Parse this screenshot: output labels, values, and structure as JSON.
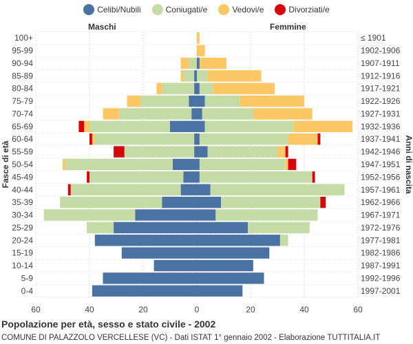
{
  "chart_data": {
    "type": "bar",
    "title": "Popolazione per età, sesso e stato civile - 2002",
    "subtitle": "COMUNE DI PALAZZOLO VERCELLESE (VC) - Dati ISTAT 1° gennaio 2002 - Elaborazione TUTTITALIA.IT",
    "left_header": "Maschi",
    "right_header": "Femmine",
    "ylabel_left": "Fasce di età",
    "ylabel_right": "Anni di nascita",
    "xlim": [
      -60,
      60
    ],
    "xticks": [
      -60,
      -40,
      -20,
      0,
      20,
      40,
      60
    ],
    "xtick_labels": [
      "60",
      "40",
      "20",
      "0",
      "20",
      "40",
      "60"
    ],
    "series": [
      {
        "name": "Celibi/Nubili",
        "color": "#4a72a2"
      },
      {
        "name": "Coniugati/e",
        "color": "#c5dba6"
      },
      {
        "name": "Vedovi/e",
        "color": "#fcc865"
      },
      {
        "name": "Divorziati/e",
        "color": "#d7060b"
      }
    ],
    "categories": [
      "100+",
      "95-99",
      "90-94",
      "85-89",
      "80-84",
      "75-79",
      "70-74",
      "65-69",
      "60-64",
      "55-59",
      "50-54",
      "45-49",
      "40-44",
      "35-39",
      "30-34",
      "25-29",
      "20-24",
      "15-19",
      "10-14",
      "5-9",
      "0-4"
    ],
    "birth_years": [
      "≤ 1901",
      "1902-1906",
      "1907-1911",
      "1912-1916",
      "1917-1921",
      "1922-1926",
      "1927-1931",
      "1932-1936",
      "1937-1941",
      "1942-1946",
      "1947-1951",
      "1952-1956",
      "1957-1961",
      "1962-1966",
      "1967-1971",
      "1972-1976",
      "1977-1981",
      "1982-1986",
      "1987-1991",
      "1992-1996",
      "1997-2001"
    ],
    "males": {
      "Celibi/Nubili": [
        0,
        0,
        0,
        1,
        1,
        3,
        2,
        10,
        1,
        1,
        9,
        5,
        6,
        13,
        23,
        31,
        38,
        28,
        16,
        35,
        39
      ],
      "Coniugati/e": [
        0,
        0,
        3,
        4,
        12,
        18,
        27,
        30,
        37,
        26,
        40,
        35,
        41,
        38,
        34,
        10,
        0,
        0,
        0,
        0,
        0
      ],
      "Vedovi/e": [
        0,
        0,
        3,
        1,
        2,
        5,
        6,
        2,
        1,
        0,
        1,
        0,
        0,
        0,
        0,
        0,
        0,
        0,
        0,
        0,
        0
      ],
      "Divorziati/e": [
        0,
        0,
        0,
        0,
        0,
        0,
        0,
        2,
        1,
        4,
        0,
        1,
        1,
        0,
        0,
        0,
        0,
        0,
        0,
        0,
        0
      ]
    },
    "females": {
      "Celibi/Nubili": [
        0,
        0,
        1,
        0,
        1,
        3,
        2,
        3,
        1,
        4,
        1,
        1,
        5,
        9,
        7,
        19,
        31,
        27,
        21,
        25,
        17
      ],
      "Coniugati/e": [
        0,
        0,
        0,
        4,
        5,
        13,
        19,
        33,
        33,
        26,
        32,
        42,
        50,
        37,
        38,
        23,
        3,
        0,
        0,
        0,
        0
      ],
      "Vedovi/e": [
        1,
        3,
        10,
        20,
        23,
        24,
        22,
        22,
        11,
        3,
        1,
        0,
        0,
        0,
        0,
        0,
        0,
        0,
        0,
        0,
        0
      ],
      "Divorziati/e": [
        0,
        0,
        0,
        0,
        0,
        0,
        0,
        0,
        1,
        1,
        3,
        1,
        0,
        2,
        0,
        0,
        0,
        0,
        0,
        0,
        0
      ]
    }
  }
}
